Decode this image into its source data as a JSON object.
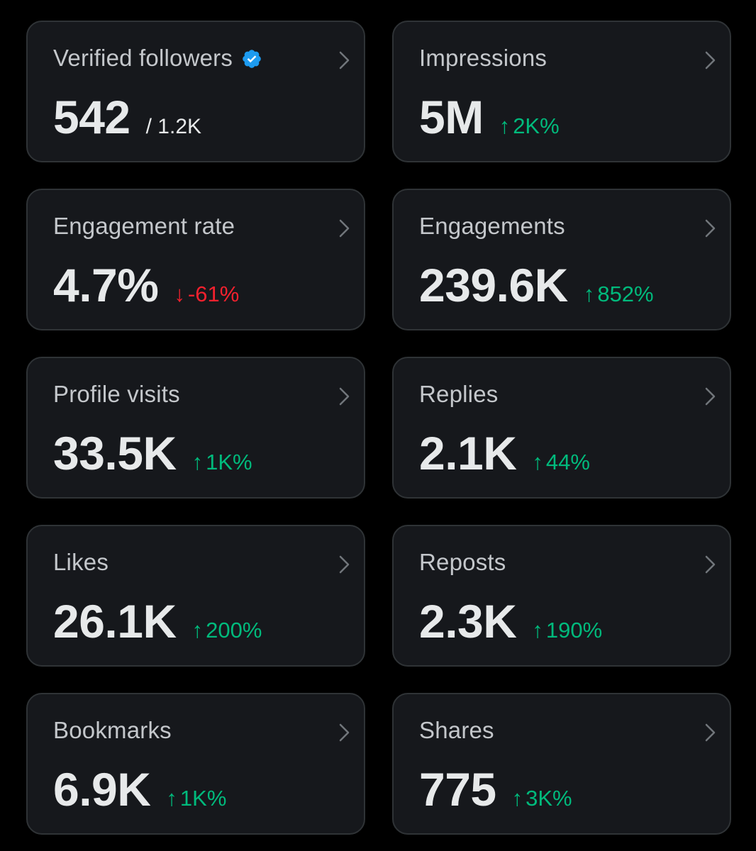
{
  "colors": {
    "background": "#000000",
    "card_bg": "#16181c",
    "card_border": "#2f3336",
    "label": "#c4c7cb",
    "value": "#e7e9ea",
    "positive": "#00ba7c",
    "negative": "#f4212e",
    "verified": "#1d9bf0",
    "chevron": "#71767b"
  },
  "cards": [
    {
      "label": "Verified followers",
      "value": "542",
      "total": "/ 1.2K",
      "verified_icon": "verified-badge-icon"
    },
    {
      "label": "Impressions",
      "value": "5M",
      "arrow": "↑",
      "change": "2K%",
      "trend": "up"
    },
    {
      "label": "Engagement rate",
      "value": "4.7%",
      "arrow": "↓",
      "change": "-61%",
      "trend": "down"
    },
    {
      "label": "Engagements",
      "value": "239.6K",
      "arrow": "↑",
      "change": "852%",
      "trend": "up"
    },
    {
      "label": "Profile visits",
      "value": "33.5K",
      "arrow": "↑",
      "change": "1K%",
      "trend": "up"
    },
    {
      "label": "Replies",
      "value": "2.1K",
      "arrow": "↑",
      "change": "44%",
      "trend": "up"
    },
    {
      "label": "Likes",
      "value": "26.1K",
      "arrow": "↑",
      "change": "200%",
      "trend": "up"
    },
    {
      "label": "Reposts",
      "value": "2.3K",
      "arrow": "↑",
      "change": "190%",
      "trend": "up"
    },
    {
      "label": "Bookmarks",
      "value": "6.9K",
      "arrow": "↑",
      "change": "1K%",
      "trend": "up"
    },
    {
      "label": "Shares",
      "value": "775",
      "arrow": "↑",
      "change": "3K%",
      "trend": "up"
    }
  ]
}
